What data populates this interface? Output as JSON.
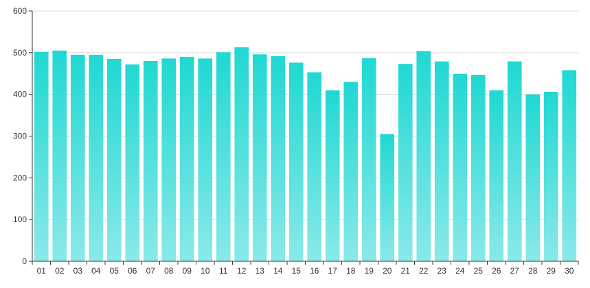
{
  "chart_data": {
    "type": "bar",
    "categories": [
      "01",
      "02",
      "03",
      "04",
      "05",
      "06",
      "07",
      "08",
      "09",
      "10",
      "11",
      "12",
      "13",
      "14",
      "15",
      "16",
      "17",
      "18",
      "19",
      "20",
      "21",
      "22",
      "23",
      "24",
      "25",
      "26",
      "27",
      "28",
      "29",
      "30"
    ],
    "values": [
      502,
      505,
      495,
      495,
      485,
      472,
      480,
      486,
      490,
      486,
      501,
      513,
      496,
      492,
      476,
      453,
      410,
      430,
      487,
      305,
      473,
      504,
      479,
      449,
      447,
      410,
      479,
      400,
      406,
      458
    ],
    "title": "",
    "xlabel": "",
    "ylabel": "",
    "ylim": [
      0,
      600
    ],
    "yticks": [
      0,
      100,
      200,
      300,
      400,
      500,
      600
    ],
    "grid": true,
    "legend": "none"
  },
  "colors": {
    "bar_top": "#20d8d2",
    "bar_bottom": "#8ae9e9",
    "grid": "#d9d9d9",
    "axis": "#333333",
    "text": "#333333"
  }
}
